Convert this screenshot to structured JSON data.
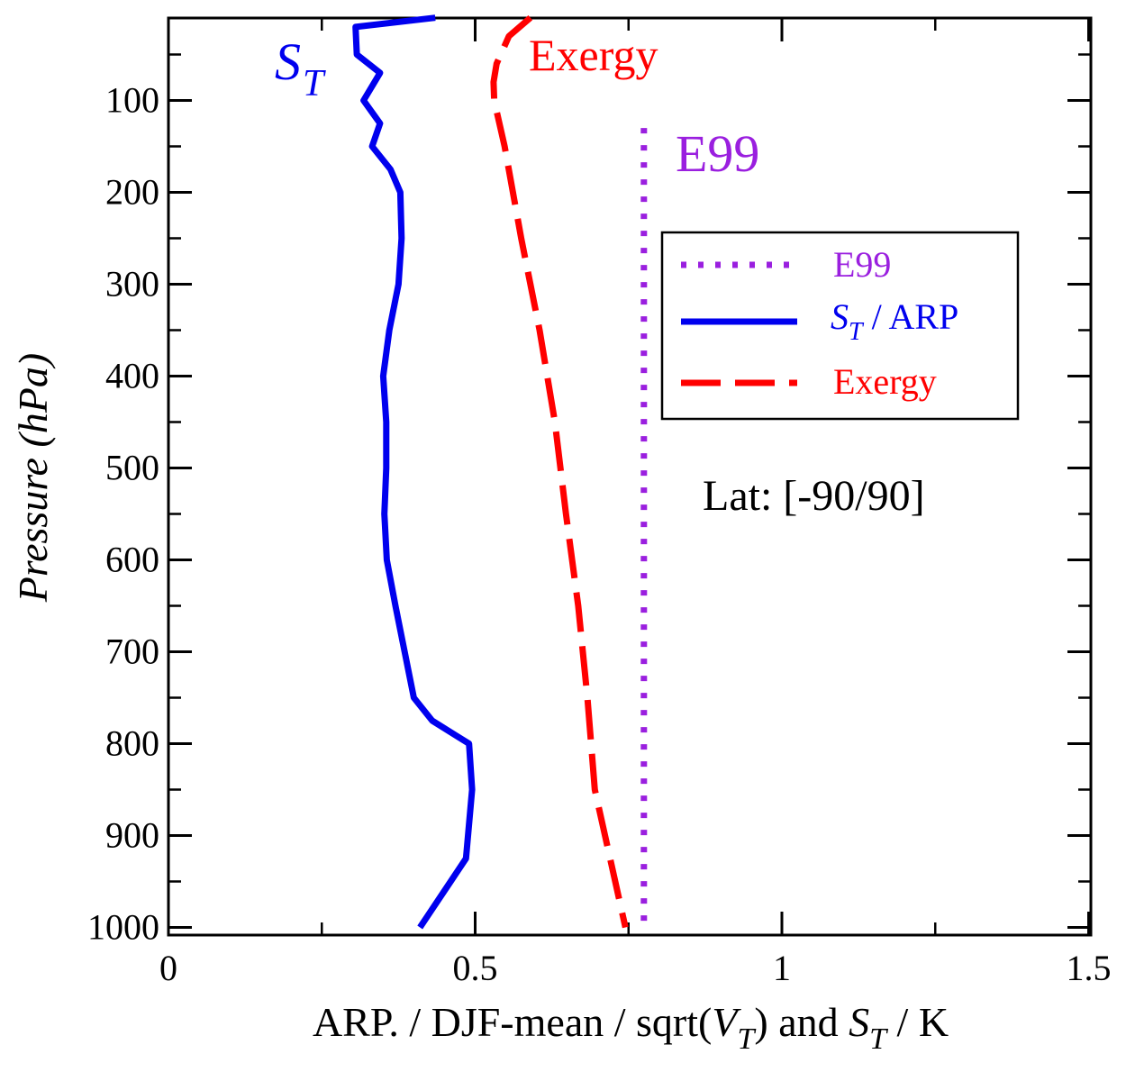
{
  "chart_data": {
    "type": "line",
    "title": "",
    "xlabel": {
      "main": "ARP. / DJF-mean / sqrt(",
      "v": "V",
      "v_sub": "T",
      "mid": ") and ",
      "s": "S",
      "s_sub": "T",
      "end": " / K"
    },
    "ylabel": {
      "main": "Pressure (",
      "unit": "hPa",
      "end": ")"
    },
    "xlim": [
      0,
      1.5
    ],
    "ylim": [
      10,
      1000
    ],
    "y_inverted": true,
    "x_ticks": [
      {
        "value": 0,
        "label": "0"
      },
      {
        "value": 0.5,
        "label": "0.5"
      },
      {
        "value": 1,
        "label": "1"
      },
      {
        "value": 1.5,
        "label": "1.5"
      }
    ],
    "x_minor_ticks": [
      0.25,
      0.75,
      1.25
    ],
    "y_ticks": [
      {
        "value": 100,
        "label": "100"
      },
      {
        "value": 200,
        "label": "200"
      },
      {
        "value": 300,
        "label": "300"
      },
      {
        "value": 400,
        "label": "400"
      },
      {
        "value": 500,
        "label": "500"
      },
      {
        "value": 600,
        "label": "600"
      },
      {
        "value": 700,
        "label": "700"
      },
      {
        "value": 800,
        "label": "800"
      },
      {
        "value": 900,
        "label": "900"
      },
      {
        "value": 1000,
        "label": "1000"
      }
    ],
    "y_minor_ticks": [
      50,
      150,
      250,
      350,
      450,
      550,
      650,
      750,
      850,
      950
    ],
    "series": [
      {
        "name": "E99",
        "color": "#9a1fdf",
        "style": "dotted",
        "x": [
          0.775,
          0.775
        ],
        "y": [
          130,
          1000
        ]
      },
      {
        "name": "S_T / ARP",
        "color": "#0000ee",
        "style": "solid",
        "x": [
          0.435,
          0.305,
          0.307,
          0.345,
          0.318,
          0.345,
          0.332,
          0.362,
          0.378,
          0.38,
          0.375,
          0.36,
          0.35,
          0.355,
          0.355,
          0.352,
          0.356,
          0.37,
          0.385,
          0.4,
          0.43,
          0.49,
          0.495,
          0.485,
          0.46,
          0.41
        ],
        "y": [
          10,
          20,
          50,
          70,
          100,
          125,
          150,
          175,
          200,
          250,
          300,
          350,
          400,
          450,
          500,
          550,
          600,
          650,
          700,
          750,
          775,
          800,
          850,
          925,
          950,
          1000
        ]
      },
      {
        "name": "Exergy",
        "color": "#ff0000",
        "style": "dashed",
        "x": [
          0.59,
          0.555,
          0.535,
          0.53,
          0.531,
          0.548,
          0.575,
          0.605,
          0.63,
          0.648,
          0.668,
          0.683,
          0.695,
          0.72,
          0.745
        ],
        "y": [
          10,
          30,
          60,
          80,
          100,
          150,
          250,
          350,
          450,
          550,
          650,
          750,
          850,
          925,
          1000
        ]
      }
    ],
    "annotations": [
      {
        "text": "S",
        "sub": "T",
        "color": "#0000ee",
        "near": "top of S_T curve"
      },
      {
        "text": "Exergy",
        "color": "#ff0000",
        "near": "top of Exergy curve"
      },
      {
        "text": "E99",
        "color": "#9a1fdf",
        "near": "top of E99 line"
      },
      {
        "text": "Lat: [-90/90]",
        "color": "#000000",
        "near": "right middle"
      }
    ],
    "legend": {
      "placement": "top-right",
      "entries": [
        {
          "label": "E99",
          "color": "#9a1fdf",
          "style": "dotted"
        },
        {
          "label_s": "S",
          "label_sub": "T",
          "label_rest": " / ARP",
          "color": "#0000ee",
          "style": "solid"
        },
        {
          "label": "Exergy",
          "color": "#ff0000",
          "style": "dashed"
        }
      ]
    }
  }
}
